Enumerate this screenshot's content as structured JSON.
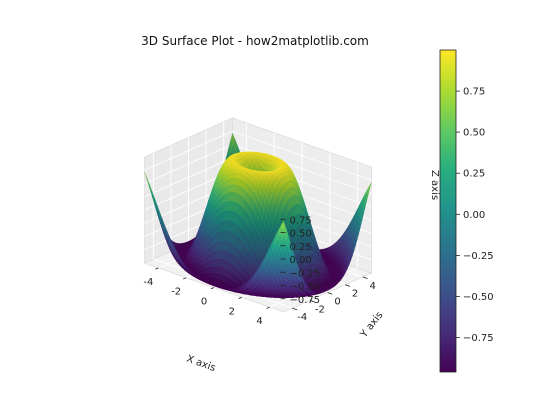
{
  "chart_data": {
    "type": "surface3d",
    "title": "3D Surface Plot - how2matplotlib.com",
    "function": "z = sin(sqrt(x^2 + y^2))",
    "xlabel": "X axis",
    "ylabel": "Y axis",
    "zlabel": "Z axis",
    "x_range": [
      -5,
      5
    ],
    "y_range": [
      -5,
      5
    ],
    "z_range": [
      -1,
      1
    ],
    "x_ticks": [
      "-4",
      "-2",
      "0",
      "2",
      "4"
    ],
    "y_ticks": [
      "-4",
      "-2",
      "0",
      "2",
      "4"
    ],
    "z_ticks": [
      "−0.75",
      "−0.50",
      "−0.25",
      "0.00",
      "0.25",
      "0.50",
      "0.75"
    ],
    "colormap": "viridis",
    "colorbar": {
      "min": -0.96,
      "max": 1.0,
      "ticks": [
        0.75,
        0.5,
        0.25,
        0.0,
        -0.25,
        -0.5,
        -0.75
      ],
      "tick_labels": [
        "0.75",
        "0.50",
        "0.25",
        "0.00",
        "−0.25",
        "−0.50",
        "−0.75"
      ]
    },
    "grid": true
  }
}
